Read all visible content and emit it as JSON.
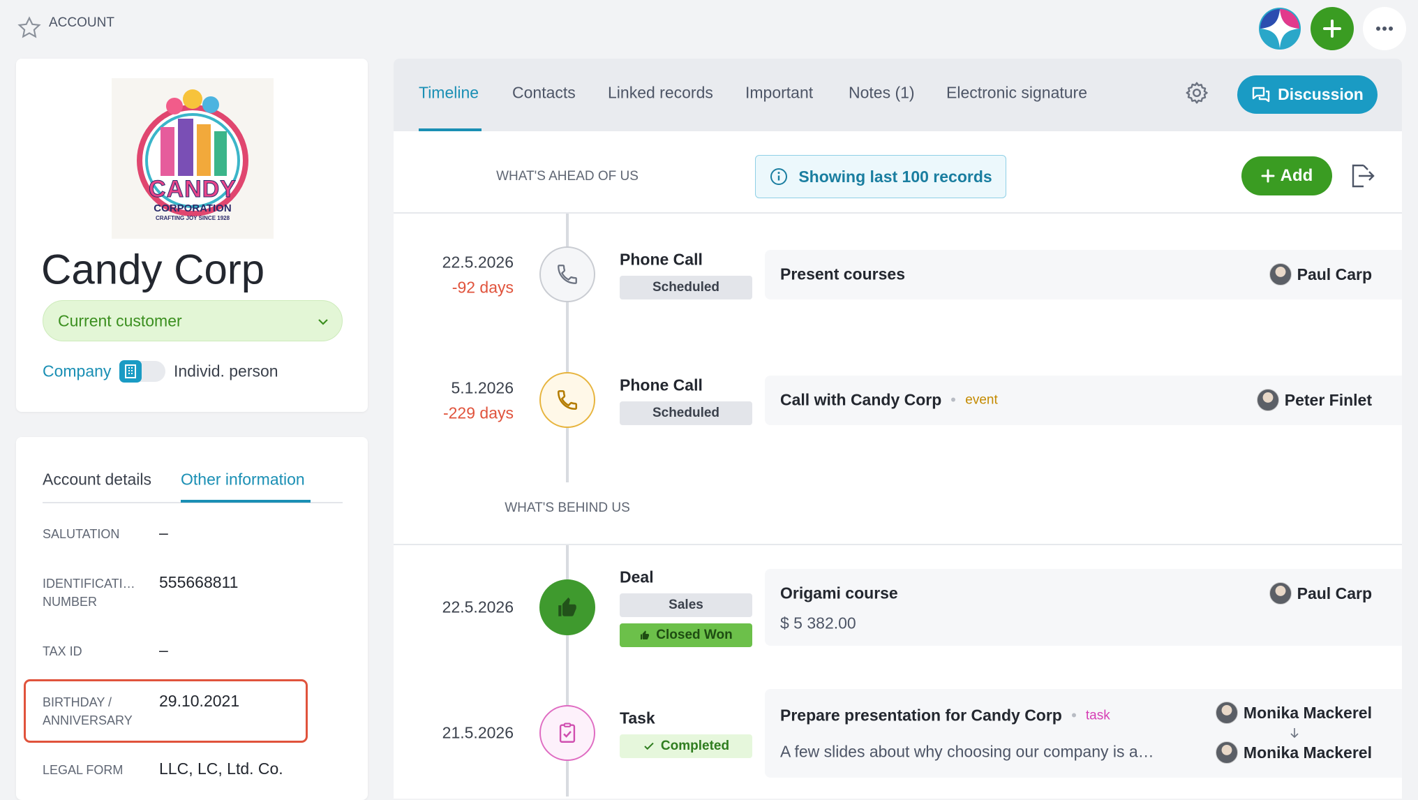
{
  "header": {
    "title": "ACCOUNT"
  },
  "company": {
    "logo": {
      "name": "CANDY",
      "subtitle": "CORPORATION",
      "tagline": "CRAFTING JOY SINCE 1928"
    },
    "name": "Candy Corp",
    "status": "Current customer",
    "type_company": "Company",
    "type_person": "Individ. person"
  },
  "details": {
    "tabs": [
      "Account details",
      "Other information"
    ],
    "fields": [
      {
        "label": "SALUTATION",
        "value": "–"
      },
      {
        "label": "IDENTIFICATI… NUMBER",
        "value": "555668811"
      },
      {
        "label": "TAX ID",
        "value": "–"
      },
      {
        "label": "BIRTHDAY / ANNIVERSARY",
        "value": "29.10.2021"
      },
      {
        "label": "LEGAL FORM",
        "value": "LLC, LC, Ltd. Co."
      }
    ]
  },
  "main": {
    "tabs": [
      "Timeline",
      "Contacts",
      "Linked records",
      "Important",
      "Notes (1)",
      "Electronic signature"
    ],
    "discussion": "Discussion"
  },
  "timeline": {
    "ahead_label": "WHAT'S AHEAD OF US",
    "info": "Showing last 100 records",
    "add": "Add",
    "behind_label": "WHAT'S BEHIND US",
    "ahead": [
      {
        "date": "22.5.2026",
        "days": "-92 days",
        "type": "Phone Call",
        "badges": [
          "Scheduled"
        ],
        "title": "Present courses",
        "person": "Paul Carp"
      },
      {
        "date": "5.1.2026",
        "days": "-229 days",
        "type": "Phone Call",
        "badges": [
          "Scheduled"
        ],
        "title": "Call with Candy Corp",
        "tag": "event",
        "person": "Peter Finlet"
      }
    ],
    "behind": [
      {
        "date": "22.5.2026",
        "type": "Deal",
        "badges": [
          "Sales",
          "Closed Won"
        ],
        "title": "Origami course",
        "detail": "$ 5 382.00",
        "person": "Paul Carp"
      },
      {
        "date": "21.5.2026",
        "type": "Task",
        "badges": [
          "Completed"
        ],
        "title": "Prepare presentation for Candy Corp",
        "tag": "task",
        "detail": "A few slides about why choosing our company is a…",
        "people": [
          "Monika Mackerel",
          "Monika Mackerel"
        ]
      }
    ]
  }
}
